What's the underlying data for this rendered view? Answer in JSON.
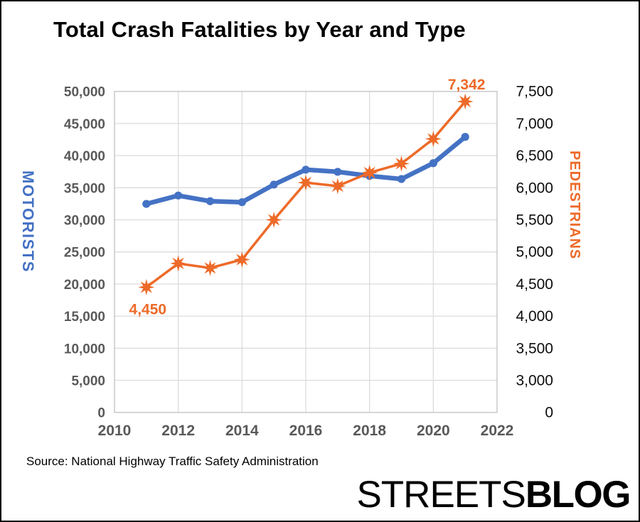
{
  "source_note": "Source: National Highway Traffic Safety Administration",
  "logo": {
    "part1": "STREETS",
    "part2": "BLOG"
  },
  "chart_data": {
    "type": "line",
    "title": "Total Crash Fatalities by Year and Type",
    "x": [
      2011,
      2012,
      2013,
      2014,
      2015,
      2016,
      2017,
      2018,
      2019,
      2020,
      2021
    ],
    "series": [
      {
        "name": "MOTORISTS",
        "axis": "left",
        "color": "#4472C4",
        "marker": "circle",
        "line_width": 6.5,
        "values": [
          32479,
          33782,
          32894,
          32744,
          35484,
          37806,
          37473,
          36835,
          36355,
          38824,
          42915
        ]
      },
      {
        "name": "PEDESTRIANS",
        "axis": "right",
        "color": "#ED6A28",
        "marker": "star8",
        "line_width": 3.5,
        "values": [
          4450,
          4820,
          4750,
          4880,
          5500,
          6080,
          6025,
          6235,
          6375,
          6760,
          7342
        ]
      }
    ],
    "left_axis": {
      "label": "MOTORISTS",
      "color": "#4472C4",
      "ticks": [
        0,
        5000,
        10000,
        15000,
        20000,
        25000,
        30000,
        35000,
        40000,
        45000,
        50000
      ],
      "range": [
        0,
        50000
      ]
    },
    "right_axis": {
      "label": "PEDESTRIANS",
      "color": "#ED6A28",
      "ticks": [
        0,
        3000,
        3500,
        4000,
        4500,
        5000,
        5500,
        6000,
        6500,
        7000,
        7500
      ],
      "scale_note": "non-linear: bottom gridline is 0, remaining gridlines step 500 from 3,000 to 7,500"
    },
    "x_axis": {
      "ticks": [
        2010,
        2012,
        2014,
        2016,
        2018,
        2020,
        2022
      ],
      "range": [
        2010,
        2022
      ]
    },
    "annotations": [
      {
        "text": "4,450",
        "series": "PEDESTRIANS",
        "year": 2011,
        "position": "below"
      },
      {
        "text": "7,342",
        "series": "PEDESTRIANS",
        "year": 2021,
        "position": "above"
      }
    ],
    "grid": true,
    "legend": "none",
    "gridline_color": "#DCDCDC",
    "plot_border_color": "#C9C9C9",
    "tick_color": "#595959"
  }
}
